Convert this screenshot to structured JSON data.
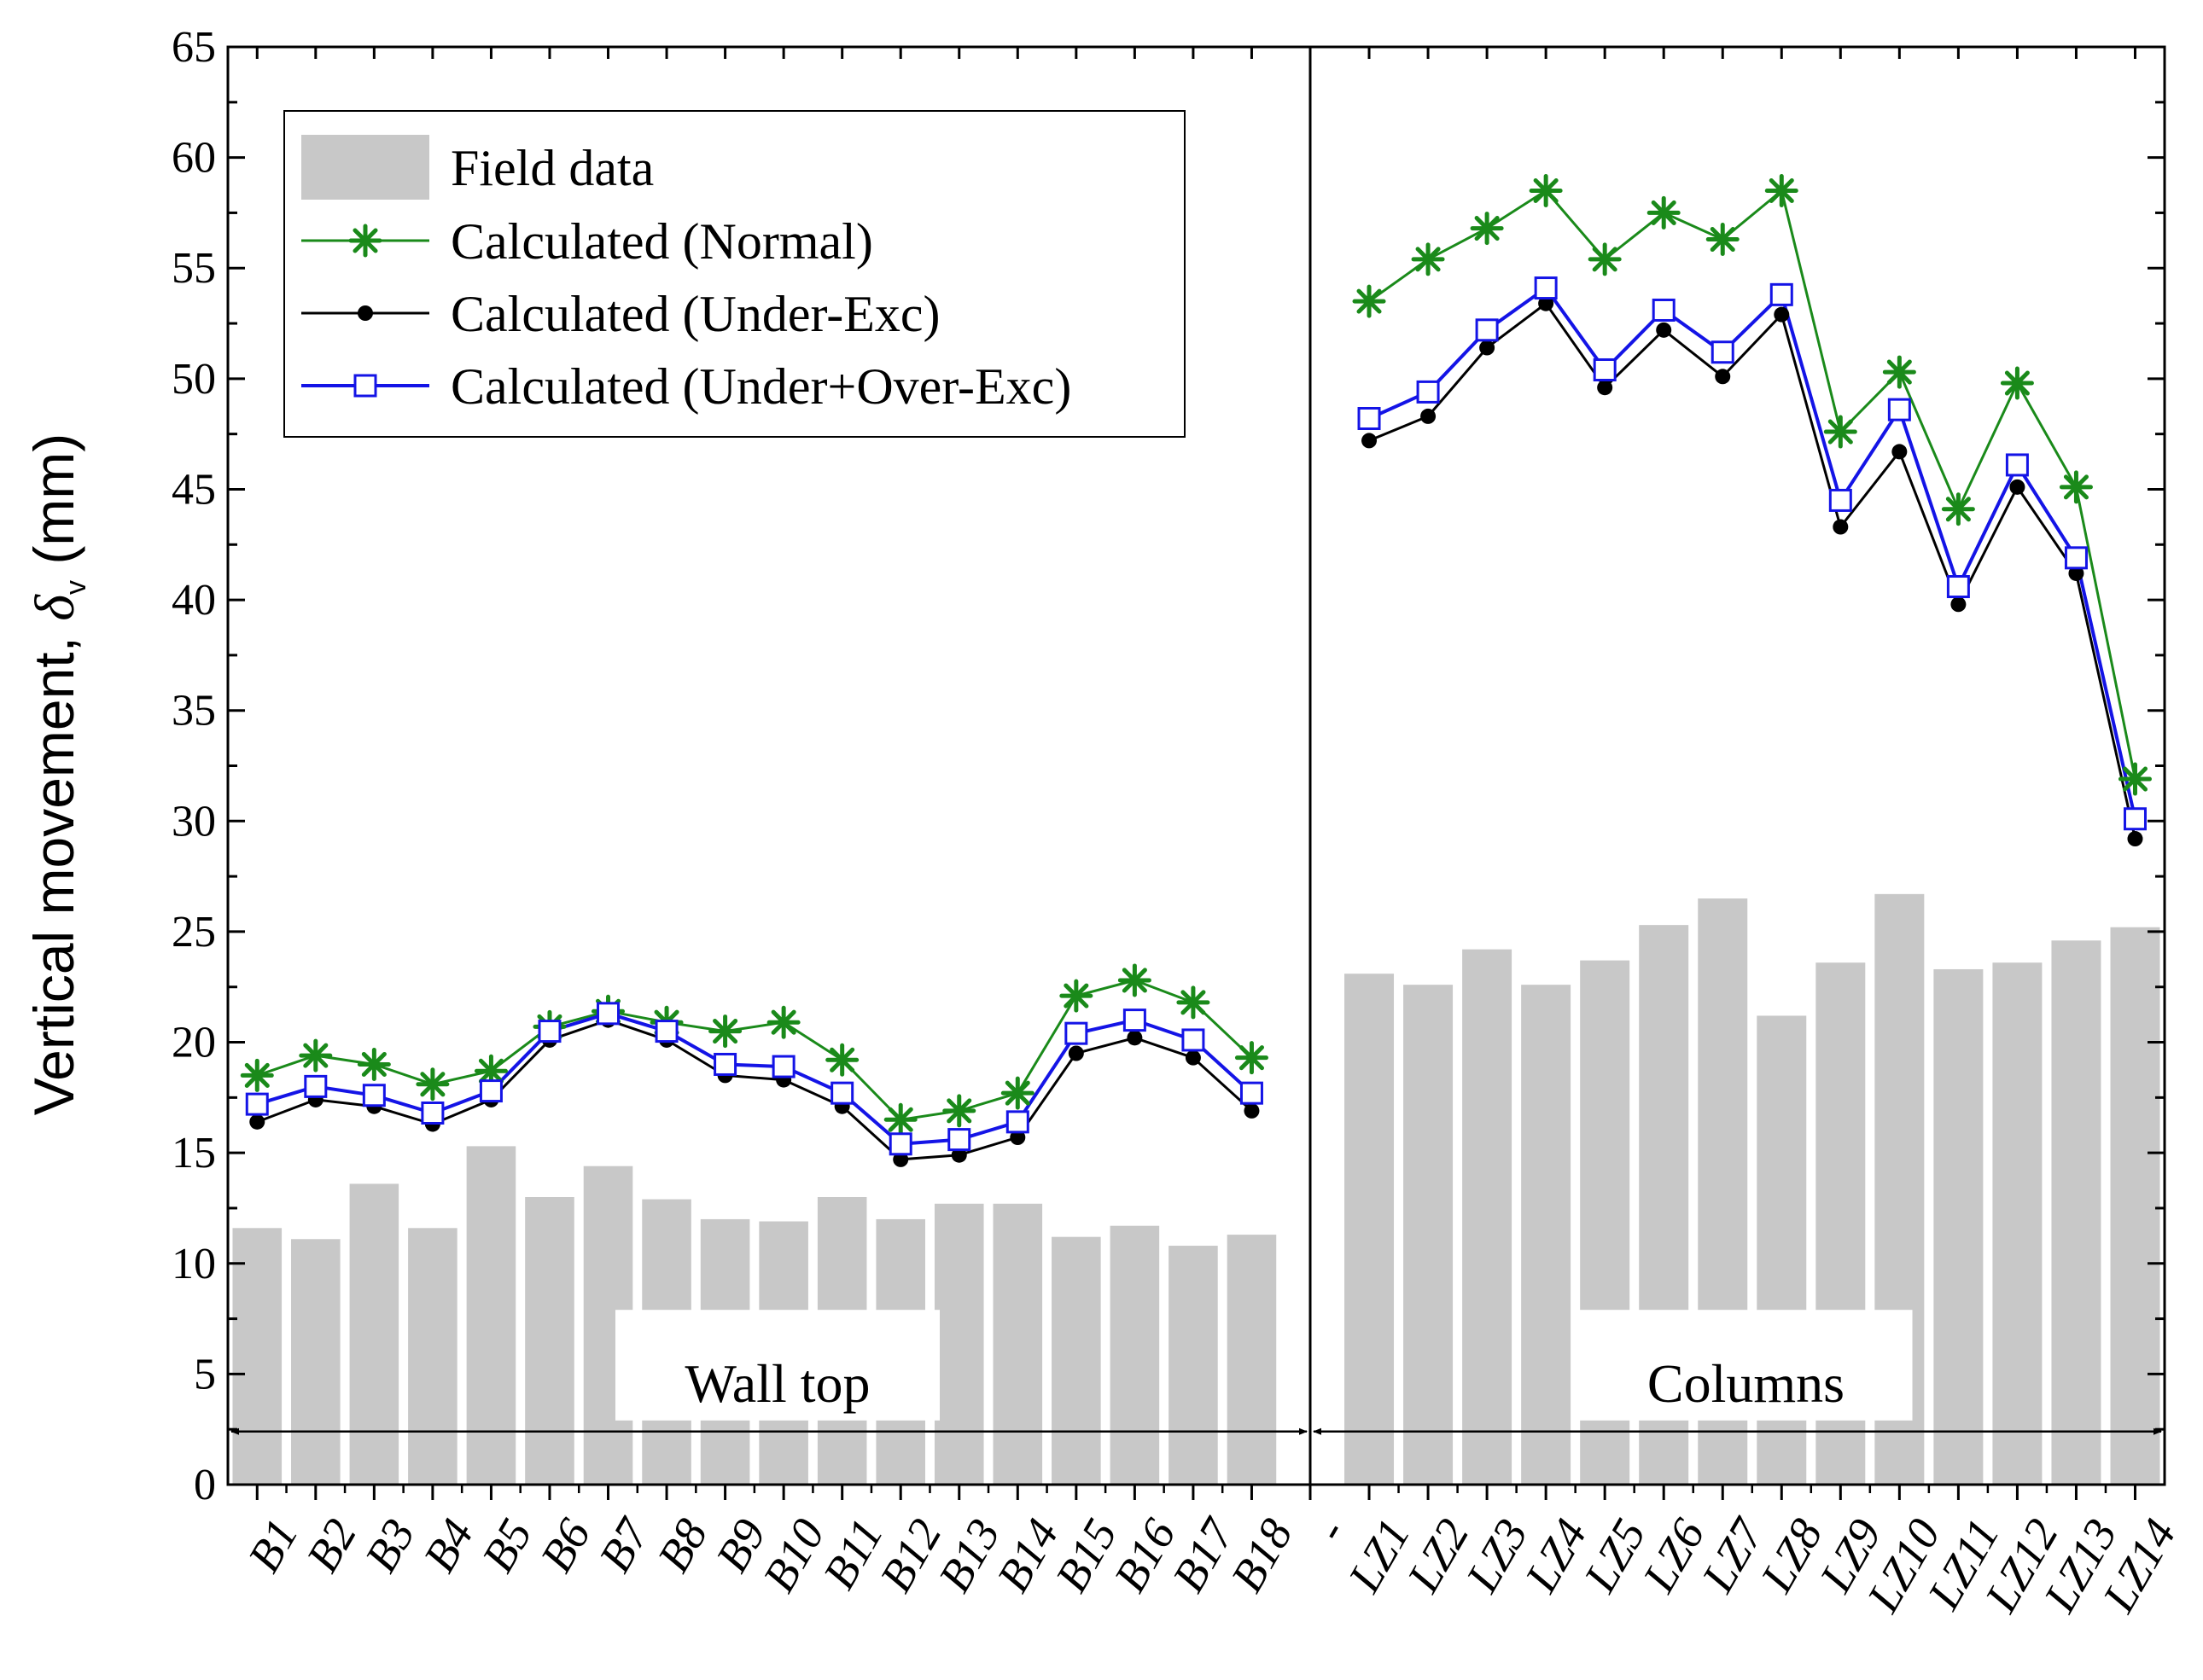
{
  "chart_data": {
    "type": "bar",
    "title": "",
    "xlabel": "",
    "ylabel": "Vertical movement, δ",
    "ylabel_subscript": "v",
    "ylabel_unit": "(mm)",
    "ylim": [
      0,
      65
    ],
    "yticks": [
      0,
      5,
      10,
      15,
      20,
      25,
      30,
      35,
      40,
      45,
      50,
      55,
      60,
      65
    ],
    "grid": false,
    "legend_position": "top-left",
    "colors": {
      "field": "#c8c8c8",
      "normal": "#1a8a1a",
      "under": "#000000",
      "under_over": "#1414e6"
    },
    "legend": {
      "field": "Field data",
      "normal": "Calculated (Normal)",
      "under": "Calculated (Under-Exc)",
      "under_over": "Calculated (Under+Over-Exc)"
    },
    "separator_label": "-",
    "groups": [
      {
        "name": "Wall top",
        "categories": [
          "B1",
          "B2",
          "B3",
          "B4",
          "B5",
          "B6",
          "B7",
          "B8",
          "B9",
          "B10",
          "B11",
          "B12",
          "B13",
          "B14",
          "B15",
          "B16",
          "B17",
          "B18"
        ],
        "series": [
          {
            "name": "Field data",
            "key": "field",
            "values": [
              11.6,
              11.1,
              13.6,
              11.6,
              15.3,
              13.0,
              14.4,
              12.9,
              12.0,
              11.9,
              13.0,
              12.0,
              12.7,
              12.7,
              11.2,
              11.7,
              10.8,
              11.3
            ]
          },
          {
            "name": "Calculated (Normal)",
            "key": "normal",
            "values": [
              18.5,
              19.4,
              19.0,
              18.1,
              18.7,
              20.7,
              21.4,
              20.9,
              20.5,
              20.9,
              19.2,
              16.5,
              16.9,
              17.7,
              22.1,
              22.8,
              21.8,
              19.3
            ]
          },
          {
            "name": "Calculated (Under-Exc)",
            "key": "under",
            "values": [
              16.4,
              17.4,
              17.1,
              16.3,
              17.4,
              20.1,
              21.0,
              20.1,
              18.5,
              18.3,
              17.1,
              14.7,
              14.9,
              15.7,
              19.5,
              20.2,
              19.3,
              16.9
            ]
          },
          {
            "name": "Calculated (Under+Over-Exc)",
            "key": "under_over",
            "values": [
              17.2,
              18.0,
              17.6,
              16.8,
              17.8,
              20.5,
              21.3,
              20.5,
              19.0,
              18.9,
              17.7,
              15.4,
              15.6,
              16.4,
              20.4,
              21.0,
              20.1,
              17.7
            ]
          }
        ]
      },
      {
        "name": "Columns",
        "categories": [
          "LZ1",
          "LZ2",
          "LZ3",
          "LZ4",
          "LZ5",
          "LZ6",
          "LZ7",
          "LZ8",
          "LZ9",
          "LZ10",
          "LZ11",
          "LZ12",
          "LZ13",
          "LZ14"
        ],
        "series": [
          {
            "name": "Field data",
            "key": "field",
            "values": [
              23.1,
              22.6,
              24.2,
              22.6,
              23.7,
              25.3,
              26.5,
              21.2,
              23.6,
              26.7,
              23.3,
              23.6,
              24.6,
              25.2
            ]
          },
          {
            "name": "Calculated (Normal)",
            "key": "normal",
            "values": [
              53.5,
              55.4,
              56.8,
              58.5,
              55.4,
              57.5,
              56.3,
              58.5,
              47.6,
              50.3,
              44.1,
              49.8,
              45.1,
              31.9
            ]
          },
          {
            "name": "Calculated (Under-Exc)",
            "key": "under",
            "values": [
              47.2,
              48.3,
              51.4,
              53.4,
              49.6,
              52.2,
              50.1,
              52.9,
              43.3,
              46.7,
              39.8,
              45.1,
              41.2,
              29.2
            ]
          },
          {
            "name": "Calculated (Under+Over-Exc)",
            "key": "under_over",
            "values": [
              48.2,
              49.4,
              52.2,
              54.1,
              50.4,
              53.1,
              51.2,
              53.8,
              44.5,
              48.6,
              40.6,
              46.1,
              41.9,
              30.1
            ]
          }
        ]
      }
    ]
  }
}
